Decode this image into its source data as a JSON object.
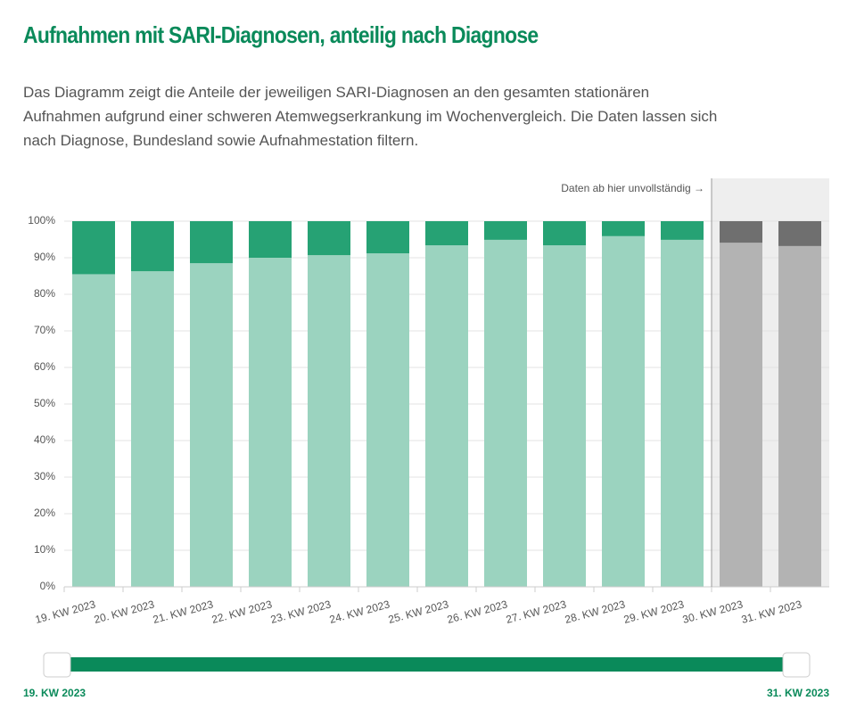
{
  "header": {
    "title": "Aufnahmen mit SARI-Diagnosen, anteilig nach Diagnose",
    "description": "Das Diagramm zeigt die Anteile der jeweiligen SARI-Diagnosen an den gesamten stationären Aufnahmen aufgrund einer schweren Atemwegserkrankung im Wochenvergleich. Die Daten lassen sich nach Diagnose, Bundesland sowie Aufnahmestation filtern."
  },
  "chart_data": {
    "type": "stacked_bar",
    "categories": [
      "19. KW 2023",
      "20. KW 2023",
      "21. KW 2023",
      "22. KW 2023",
      "23. KW 2023",
      "24. KW 2023",
      "25. KW 2023",
      "26. KW 2023",
      "27. KW 2023",
      "28. KW 2023",
      "29. KW 2023",
      "30. KW 2023",
      "31. KW 2023"
    ],
    "series": [
      {
        "colors": [
          "#9bd3bf",
          "#9bd3bf",
          "#9bd3bf",
          "#9bd3bf",
          "#9bd3bf",
          "#9bd3bf",
          "#9bd3bf",
          "#9bd3bf",
          "#9bd3bf",
          "#9bd3bf",
          "#9bd3bf",
          "#b3b3b3",
          "#b3b3b3"
        ],
        "values": [
          85.5,
          86.3,
          88.5,
          90.0,
          90.7,
          91.2,
          93.4,
          94.9,
          93.4,
          95.9,
          94.9,
          94.1,
          93.2
        ]
      },
      {
        "colors": [
          "#26a274",
          "#26a274",
          "#26a274",
          "#26a274",
          "#26a274",
          "#26a274",
          "#26a274",
          "#26a274",
          "#26a274",
          "#26a274",
          "#26a274",
          "#6f6f6f",
          "#6f6f6f"
        ],
        "values": [
          14.5,
          13.7,
          11.5,
          10.0,
          9.3,
          8.8,
          6.6,
          5.1,
          6.6,
          4.1,
          5.1,
          5.9,
          6.8
        ]
      }
    ],
    "incomplete_annotation": "Daten ab hier unvollständig →",
    "ylim": [
      0,
      100
    ],
    "yticks": [
      {
        "value": 0,
        "label": "0%"
      },
      {
        "value": 10,
        "label": "10%"
      },
      {
        "value": 20,
        "label": "20%"
      },
      {
        "value": 30,
        "label": "30%"
      },
      {
        "value": 40,
        "label": "40%"
      },
      {
        "value": 50,
        "label": "50%"
      },
      {
        "value": 60,
        "label": "60%"
      },
      {
        "value": 70,
        "label": "70%"
      },
      {
        "value": 80,
        "label": "80%"
      },
      {
        "value": 90,
        "label": "90%"
      },
      {
        "value": 100,
        "label": "100%"
      }
    ],
    "grid": true
  },
  "slider": {
    "start_label": "19. KW 2023",
    "end_label": "31. KW 2023"
  }
}
